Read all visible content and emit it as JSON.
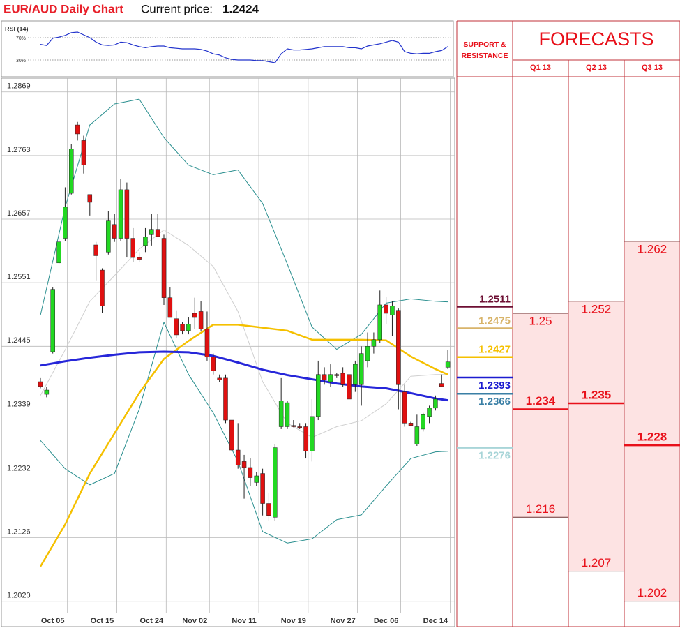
{
  "title": "EUR/AUD Daily Chart",
  "price_label": "Current price:",
  "current_price": 1.2424,
  "chart_data": [
    {
      "type": "line",
      "title": "RSI (14)",
      "color": "#2233cc",
      "ylim": [
        0,
        100
      ],
      "yticks": [
        {
          "value": 70,
          "label": "70%"
        },
        {
          "value": 30,
          "label": "30%"
        }
      ],
      "values": [
        58,
        56,
        69,
        71,
        74,
        79,
        80,
        75,
        70,
        62,
        57,
        56,
        57,
        62,
        61,
        57,
        54,
        52,
        54,
        55,
        55,
        52,
        51,
        50,
        50,
        50,
        49,
        46,
        41,
        39,
        34,
        31,
        30,
        30,
        30,
        29,
        29,
        27,
        25,
        41,
        50,
        48,
        48,
        49,
        50,
        52,
        54,
        54,
        54,
        54,
        52,
        52,
        50,
        55,
        57,
        59,
        62,
        65,
        62,
        45,
        42,
        41,
        42,
        42,
        45,
        47,
        54
      ]
    },
    {
      "type": "candlestick",
      "up_color": "#22d822",
      "down_color": "#e01010",
      "grid": true,
      "ylim": [
        1.2001,
        1.2892
      ],
      "yticks": [
        1.2869,
        1.2763,
        1.2657,
        1.2551,
        1.2445,
        1.2339,
        1.2232,
        1.2126,
        {
          "value": 1.202,
          "label": "1.2020"
        }
      ],
      "categories": [
        null,
        null,
        "Oct 05",
        null,
        null,
        null,
        null,
        null,
        null,
        null,
        "Oct 15",
        null,
        null,
        null,
        null,
        null,
        null,
        null,
        "Oct 24",
        null,
        null,
        null,
        null,
        null,
        null,
        "Nov 02",
        null,
        null,
        null,
        null,
        null,
        null,
        null,
        "Nov 11",
        null,
        null,
        null,
        null,
        null,
        null,
        null,
        "Nov 19",
        null,
        null,
        null,
        null,
        null,
        null,
        null,
        "Nov 27",
        null,
        null,
        null,
        null,
        null,
        null,
        "Dec 06",
        null,
        null,
        null,
        null,
        null,
        null,
        null,
        "Dec 14",
        null,
        null
      ],
      "open": [
        1.2386,
        1.2365,
        1.2436,
        1.2584,
        1.2625,
        1.27,
        1.2814,
        1.2788,
        1.2698,
        1.2614,
        1.2572,
        1.2602,
        1.2648,
        1.2625,
        1.2706,
        1.2625,
        1.2593,
        1.2613,
        1.2631,
        1.264,
        1.2625,
        1.2526,
        1.2491,
        1.2482,
        1.2471,
        1.25,
        1.2503,
        1.2474,
        1.2427,
        1.2392,
        1.2392,
        1.2322,
        1.2272,
        1.2253,
        1.2243,
        1.2218,
        1.2233,
        1.2183,
        1.216,
        1.2311,
        1.2311,
        1.2313,
        1.2311,
        1.2311,
        1.227,
        1.2328,
        1.2398,
        1.2386,
        1.2398,
        1.24,
        1.2398,
        1.2381,
        1.2381,
        1.2421,
        1.2445,
        1.2456,
        1.2514,
        1.2497,
        1.2505,
        1.2369,
        1.2317,
        1.2282,
        1.2307,
        1.2328,
        1.2342,
        1.2383,
        1.241
      ],
      "high": [
        1.2392,
        1.2377,
        1.2543,
        1.2625,
        1.271,
        1.2782,
        1.2819,
        1.2796,
        1.2698,
        1.2619,
        1.2575,
        1.2671,
        1.2666,
        1.2724,
        1.2718,
        1.2642,
        1.2602,
        1.2642,
        1.2666,
        1.2666,
        1.2631,
        1.2543,
        1.2505,
        1.2485,
        1.2493,
        1.2526,
        1.252,
        1.2503,
        1.2433,
        1.2398,
        1.2398,
        1.2322,
        1.2317,
        1.2264,
        1.2258,
        1.2235,
        1.2241,
        1.22,
        1.2282,
        1.2392,
        1.2354,
        1.2322,
        1.2317,
        1.2317,
        1.2357,
        1.2421,
        1.241,
        1.2415,
        1.24,
        1.241,
        1.2412,
        1.2421,
        1.2445,
        1.2468,
        1.2468,
        1.2538,
        1.2528,
        1.252,
        1.2508,
        1.2381,
        1.2319,
        1.2331,
        1.2334,
        1.2346,
        1.2363,
        1.2398,
        1.2439
      ],
      "low": [
        1.2375,
        1.236,
        1.2433,
        1.2582,
        1.2621,
        1.2698,
        1.2788,
        1.2733,
        1.2663,
        1.2555,
        1.25,
        1.2598,
        1.2619,
        1.2621,
        1.2593,
        1.2586,
        1.2586,
        1.2602,
        1.2613,
        1.2628,
        1.2514,
        1.2493,
        1.2459,
        1.2465,
        1.2465,
        1.2474,
        1.247,
        1.2421,
        1.2398,
        1.2386,
        1.2317,
        1.227,
        1.2241,
        1.2191,
        1.2212,
        1.2212,
        1.2163,
        1.2154,
        1.2154,
        1.2307,
        1.2307,
        1.231,
        1.2307,
        1.2258,
        1.2253,
        1.2322,
        1.2381,
        1.2377,
        1.2392,
        1.2377,
        1.2346,
        1.2369,
        1.2346,
        1.241,
        1.2433,
        1.245,
        1.2482,
        1.2462,
        1.234,
        1.2311,
        1.2312,
        1.2279,
        1.2303,
        1.2317,
        1.2338,
        1.2377,
        1.2407
      ],
      "close": [
        1.2378,
        1.2372,
        1.254,
        1.2619,
        1.2677,
        1.2774,
        1.2799,
        1.2747,
        1.2685,
        1.2596,
        1.2512,
        1.2654,
        1.2625,
        1.2706,
        1.2625,
        1.2593,
        1.259,
        1.2627,
        1.264,
        1.2628,
        1.2526,
        1.2493,
        1.2464,
        1.2471,
        1.2482,
        1.2493,
        1.2474,
        1.2427,
        1.2404,
        1.2389,
        1.2322,
        1.2272,
        1.2247,
        1.2243,
        1.2226,
        1.2229,
        1.2183,
        1.2163,
        1.2276,
        1.2354,
        1.2351,
        1.2311,
        1.231,
        1.227,
        1.2328,
        1.2398,
        1.2389,
        1.2398,
        1.2396,
        1.2381,
        1.2357,
        1.2415,
        1.2433,
        1.2445,
        1.2456,
        1.2514,
        1.25,
        1.2512,
        1.2381,
        1.2317,
        1.2313,
        1.2311,
        1.2331,
        1.2342,
        1.2357,
        1.2378,
        1.2419
      ],
      "overlays": [
        {
          "color": "#cfcfcf",
          "width": 1,
          "x": [
            0,
            4,
            8,
            12,
            16,
            20,
            24,
            28,
            32,
            36,
            40,
            44,
            48,
            52,
            56,
            60,
            64,
            66
          ],
          "values": [
            1.2363,
            1.2439,
            1.252,
            1.2563,
            1.2607,
            1.2639,
            1.2613,
            1.2578,
            1.2503,
            1.2386,
            1.2317,
            1.2293,
            1.2311,
            1.2321,
            1.2349,
            1.2395,
            1.2398,
            1.2398
          ]
        },
        {
          "color": "#2a8f8f",
          "width": 1,
          "x": [
            0,
            4,
            8,
            12,
            16,
            20,
            24,
            28,
            32,
            36,
            40,
            44,
            48,
            52,
            56,
            60,
            64,
            66
          ],
          "values": [
            1.2497,
            1.2677,
            1.2814,
            1.2849,
            1.2857,
            1.2793,
            1.2747,
            1.2731,
            1.2739,
            1.2683,
            1.2582,
            1.2477,
            1.244,
            1.2465,
            1.2517,
            1.2524,
            1.252,
            1.2519
          ]
        },
        {
          "color": "#2a8f8f",
          "width": 1,
          "x": [
            0,
            4,
            8,
            12,
            16,
            20,
            24,
            28,
            32,
            36,
            40,
            44,
            48,
            52,
            56,
            60,
            64,
            66
          ],
          "values": [
            1.2288,
            1.2241,
            1.2214,
            1.2233,
            1.234,
            1.2485,
            1.2398,
            1.2334,
            1.2253,
            1.2136,
            1.2117,
            1.2124,
            1.2156,
            1.2164,
            1.2212,
            1.2258,
            1.2269,
            1.227
          ]
        },
        {
          "color": "#f5c000",
          "width": 2.5,
          "x": [
            0,
            4,
            8,
            12,
            16,
            20,
            24,
            28,
            32,
            36,
            40,
            44,
            48,
            52,
            56,
            60,
            64,
            66
          ],
          "values": [
            1.2078,
            1.2148,
            1.2233,
            1.23,
            1.2367,
            1.2424,
            1.2454,
            1.2481,
            1.2481,
            1.2476,
            1.2471,
            1.2456,
            1.2456,
            1.2456,
            1.2455,
            1.2428,
            1.2407,
            1.2398
          ]
        },
        {
          "color": "#2626d9",
          "width": 3,
          "x": [
            0,
            4,
            8,
            12,
            16,
            20,
            24,
            28,
            32,
            36,
            40,
            44,
            48,
            52,
            56,
            60,
            64,
            66
          ],
          "values": [
            1.2413,
            1.242,
            1.2426,
            1.2431,
            1.2435,
            1.2436,
            1.2435,
            1.2429,
            1.2418,
            1.2406,
            1.2397,
            1.239,
            1.2383,
            1.2378,
            1.2375,
            1.2367,
            1.2358,
            1.2355
          ]
        }
      ]
    }
  ],
  "support_resistance": {
    "title_lines": [
      "SUPPORT &",
      "RESISTANCE"
    ],
    "levels": [
      {
        "value": 1.2511,
        "color": "#6d0f33"
      },
      {
        "value": 1.2475,
        "color": "#d8b46a"
      },
      {
        "value": 1.2427,
        "color": "#f5c000"
      },
      {
        "value": 1.2393,
        "color": "#1c1cd0"
      },
      {
        "value": 1.2366,
        "color": "#3a7fa5"
      },
      {
        "value": 1.2276,
        "color": "#a8d5d8"
      }
    ]
  },
  "forecasts": {
    "title": "FORECASTS",
    "color": "#e8101a",
    "fill": "#fde3e3",
    "columns": [
      {
        "label": "Q1 13",
        "high": 1.25,
        "mid": 1.234,
        "low": 1.216
      },
      {
        "label": "Q2 13",
        "high": 1.252,
        "mid": 1.235,
        "low": 1.207
      },
      {
        "label": "Q3 13",
        "high": 1.262,
        "mid": 1.228,
        "low": 1.202
      }
    ]
  }
}
